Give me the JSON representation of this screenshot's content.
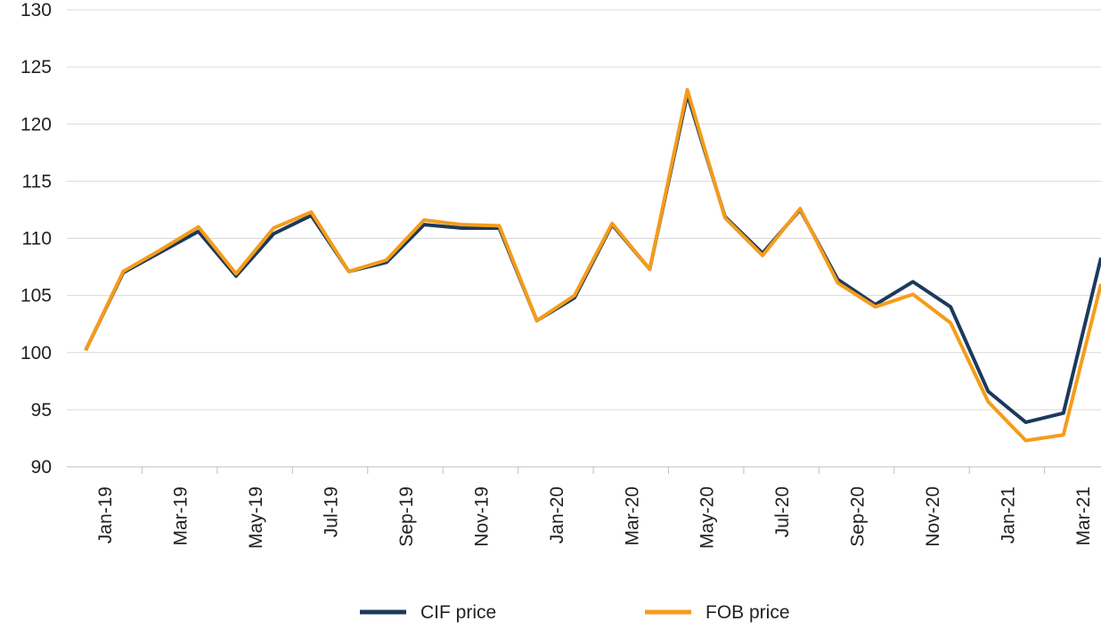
{
  "chart_data": {
    "type": "line",
    "categories": [
      "Jan-19",
      null,
      "Mar-19",
      null,
      "May-19",
      null,
      "Jul-19",
      null,
      "Sep-19",
      null,
      "Nov-19",
      null,
      "Jan-20",
      null,
      "Mar-20",
      null,
      "May-20",
      null,
      "Jul-20",
      null,
      "Sep-20",
      null,
      "Nov-20",
      null,
      "Jan-21",
      null,
      "Mar-21",
      null
    ],
    "series": [
      {
        "name": "CIF price",
        "color": "#1b3a5c",
        "values": [
          100.2,
          107.0,
          108.8,
          110.6,
          106.7,
          110.4,
          112.0,
          107.1,
          107.9,
          111.2,
          110.9,
          110.9,
          102.8,
          104.8,
          111.2,
          107.3,
          122.6,
          111.9,
          108.7,
          112.5,
          106.4,
          104.2,
          106.2,
          104.0,
          96.6,
          93.9,
          94.7,
          108.3
        ]
      },
      {
        "name": "FOB price",
        "color": "#f59c1a",
        "values": [
          100.2,
          107.1,
          109.0,
          111.0,
          106.9,
          110.9,
          112.3,
          107.1,
          108.1,
          111.6,
          111.2,
          111.1,
          102.8,
          105.0,
          111.3,
          107.3,
          123.0,
          111.8,
          108.5,
          112.6,
          106.1,
          104.0,
          105.1,
          102.6,
          95.7,
          92.3,
          92.8,
          106.0
        ]
      }
    ],
    "ylim": [
      90,
      130
    ],
    "yticks": [
      90,
      95,
      100,
      105,
      110,
      115,
      120,
      125,
      130
    ],
    "grid": true,
    "legend": "bottom"
  }
}
